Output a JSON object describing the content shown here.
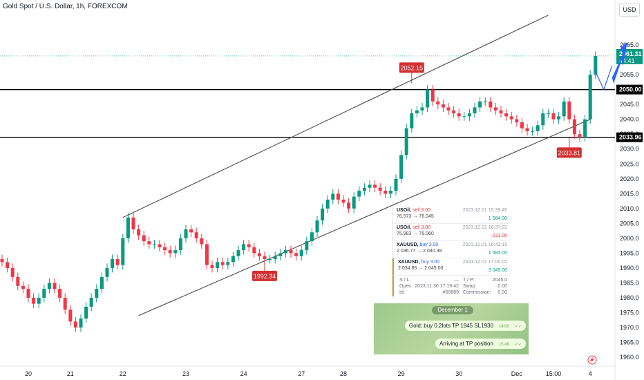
{
  "title": "Gold Spot / U.S. Dollar, 1h, FOREXCOM",
  "currency_button": "USD",
  "colors": {
    "up": "#089981",
    "down": "#f23645",
    "last_price": "#089981",
    "annotation": "#d32f2f",
    "arrow": "#2962ff"
  },
  "chart_data": {
    "type": "candlestick",
    "title": "Gold Spot / U.S. Dollar, 1h, FOREXCOM",
    "ylim": [
      1957,
      2075
    ],
    "y_ticks": [
      1960,
      1965,
      1970,
      1975,
      1980,
      1985,
      1990,
      1995,
      2000,
      2005,
      2010,
      2015,
      2020,
      2025,
      2030,
      2035,
      2040,
      2045,
      2050,
      2055,
      2060,
      2065
    ],
    "x_ticks": [
      {
        "label": "20",
        "i": 5
      },
      {
        "label": "21",
        "i": 13
      },
      {
        "label": "22",
        "i": 23
      },
      {
        "label": "23",
        "i": 35
      },
      {
        "label": "24",
        "i": 46
      },
      {
        "label": "27",
        "i": 57
      },
      {
        "label": "28",
        "i": 65
      },
      {
        "label": "29",
        "i": 76
      },
      {
        "label": "30",
        "i": 87
      },
      {
        "label": "Dec",
        "i": 98
      },
      {
        "label": "15:00",
        "i": 105
      },
      {
        "label": "4",
        "i": 112
      }
    ],
    "close": [
      1992,
      1990,
      1987,
      1984,
      1983,
      1980,
      1978,
      1980,
      1983,
      1985,
      1983,
      1980,
      1976,
      1972,
      1970,
      1973,
      1977,
      1980,
      1983,
      1987,
      1990,
      1993,
      1991,
      2000,
      2007,
      2003,
      2001,
      1999,
      1998,
      1998,
      1997,
      1996,
      1995,
      1996,
      2000,
      2003,
      2002,
      2000,
      1998,
      1991,
      1990,
      1992,
      1991,
      1992,
      1994,
      1996,
      1998,
      1997,
      1995,
      1994,
      1993,
      1993,
      1994,
      1995,
      1996,
      1995,
      1994,
      1996,
      1999,
      2002,
      2006,
      2010,
      2013,
      2015,
      2013,
      2012,
      2010,
      2014,
      2016,
      2017,
      2018,
      2017,
      2016,
      2015,
      2016,
      2020,
      2028,
      2037,
      2042,
      2043,
      2044,
      2050,
      2046,
      2045,
      2044,
      2043,
      2042,
      2041,
      2041,
      2042,
      2044,
      2046,
      2046,
      2044,
      2043,
      2042,
      2041,
      2040,
      2039,
      2037,
      2036,
      2036,
      2038,
      2042,
      2042,
      2040,
      2041,
      2046,
      2040,
      2035,
      2034,
      2040,
      2055,
      2061.31
    ],
    "high_low_pad": 1.5,
    "last_price": 2061.31,
    "countdown": "44:41",
    "levels": [
      {
        "price": 2050.0,
        "label": "2050.00"
      },
      {
        "price": 2033.96,
        "label": "2033.96"
      }
    ],
    "channel": {
      "upper": {
        "from": {
          "i": 23,
          "price": 2007
        },
        "to": {
          "i": 104,
          "price": 2075
        }
      },
      "lower": {
        "from": {
          "i": 26,
          "price": 1974
        },
        "to": {
          "i": 112,
          "price": 2040
        }
      }
    },
    "annotations": [
      {
        "label": "2052.15",
        "i": 78,
        "price": 2052.15,
        "pos": "above"
      },
      {
        "label": "1992.34",
        "i": 50,
        "price": 1992.34,
        "pos": "below"
      },
      {
        "label": "2033.81",
        "i": 108,
        "price": 2033.81,
        "pos": "below"
      }
    ]
  },
  "trades": [
    {
      "symbol": "USOil,",
      "side": "sell 3.00",
      "time": "2023.12.01 15:39:45",
      "prices": "76.573 → 76.045",
      "pnl": "1 584.00",
      "pnl_sign": "pos"
    },
    {
      "symbol": "USOil,",
      "side": "sell 3.00",
      "time": "2023.12.01 16:37:22",
      "prices": "75.983 → 76.060",
      "pnl": "-231.00",
      "pnl_sign": "neg"
    },
    {
      "symbol": "XAUUSD,",
      "side": "buy 3.00",
      "time": "2023.12.01 16:43:15",
      "prices": "2 036.77 → 2 040.38",
      "pnl": "1 083.00",
      "pnl_sign": "pos"
    },
    {
      "symbol": "XAUUSD,",
      "side": "buy 3.00",
      "time": "2023.12.01 17:00:02",
      "prices": "2 034.85 → 2 045.00",
      "pnl": "3 045.00",
      "pnl_sign": "pos"
    }
  ],
  "trade_details": [
    {
      "k1": "S / L:",
      "v1": "—",
      "k2": "T / P:",
      "v2": "2045.0"
    },
    {
      "k1": "Open:",
      "v1": "2023.11.30 17:19:42",
      "k2": "Swap:",
      "v2": "0.00"
    },
    {
      "k1": "Id:",
      "v1": "#50889",
      "k2": "Commission:",
      "v2": "0.00"
    }
  ],
  "telegram": {
    "date": "December 1",
    "messages": [
      {
        "text": "Gold: buy 0.2lots  TP 1945 SL1930",
        "time": "14:00"
      },
      {
        "text": "Arriving at TP position",
        "time": "15:49"
      }
    ]
  }
}
